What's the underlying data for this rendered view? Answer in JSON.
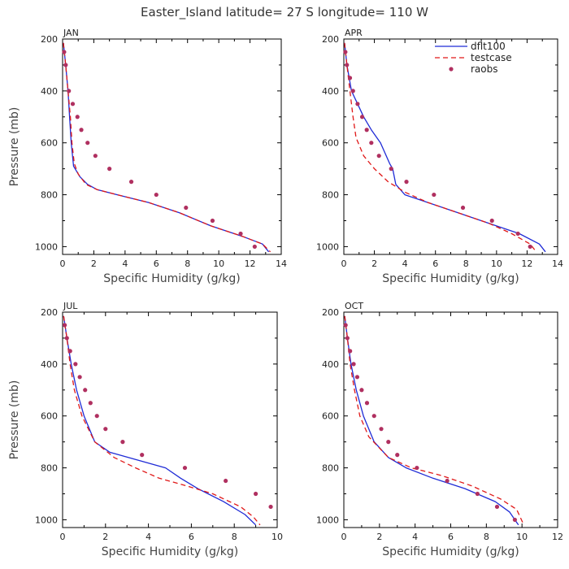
{
  "figure": {
    "title": "Easter_Island  latitude= 27 S longitude= 110 W",
    "colors": {
      "dflt100": "#1f2bd6",
      "testcase": "#e01818",
      "raobs": "#b03060",
      "axis": "#000000"
    }
  },
  "legend": {
    "entries": [
      {
        "name": "dflt100",
        "style": "solid-line"
      },
      {
        "name": "testcase",
        "style": "dashed-line"
      },
      {
        "name": "raobs",
        "style": "dot"
      }
    ]
  },
  "chart_data": [
    {
      "type": "line",
      "panel": "JAN",
      "xlabel": "Specific Humidity (g/kg)",
      "ylabel": "Pressure (mb)",
      "xlim": [
        0,
        14
      ],
      "ylim": [
        1030,
        200
      ],
      "xticks": [
        0,
        2,
        4,
        6,
        8,
        10,
        12,
        14
      ],
      "yticks": [
        200,
        400,
        600,
        800,
        1000
      ],
      "series": [
        {
          "name": "dflt100",
          "x": [
            0.05,
            0.2,
            0.35,
            0.45,
            0.55,
            0.7,
            1.1,
            1.6,
            2.2,
            3.5,
            5.5,
            7.5,
            9.5,
            11.5,
            12.8,
            13.2
          ],
          "y": [
            215,
            300,
            400,
            500,
            600,
            690,
            730,
            760,
            780,
            800,
            830,
            870,
            920,
            960,
            990,
            1020
          ]
        },
        {
          "name": "testcase",
          "x": [
            0.05,
            0.2,
            0.35,
            0.5,
            0.6,
            0.75,
            1.0,
            1.5,
            2.2,
            3.5,
            5.5,
            7.5,
            9.5,
            11.5,
            12.8,
            13.3
          ],
          "y": [
            215,
            300,
            400,
            500,
            600,
            680,
            720,
            760,
            780,
            800,
            830,
            870,
            920,
            960,
            990,
            1020
          ]
        },
        {
          "name": "raobs",
          "x": [
            0.1,
            0.2,
            0.4,
            0.65,
            0.95,
            1.2,
            1.6,
            2.1,
            3.0,
            4.4,
            6.0,
            7.9,
            9.6,
            11.4,
            12.3
          ],
          "y": [
            250,
            300,
            400,
            450,
            500,
            550,
            600,
            650,
            700,
            750,
            800,
            850,
            900,
            950,
            1000
          ]
        }
      ]
    },
    {
      "type": "line",
      "panel": "APR",
      "xlabel": "Specific Humidity (g/kg)",
      "ylabel": "",
      "xlim": [
        0,
        14
      ],
      "ylim": [
        1030,
        200
      ],
      "xticks": [
        0,
        2,
        4,
        6,
        8,
        10,
        12,
        14
      ],
      "yticks": [
        200,
        400,
        600,
        800,
        1000
      ],
      "series": [
        {
          "name": "dflt100",
          "x": [
            0.05,
            0.2,
            0.5,
            0.9,
            1.3,
            1.8,
            2.4,
            3.0,
            3.2,
            3.4,
            4.0,
            5.5,
            7.5,
            9.5,
            11.5,
            12.8,
            13.2
          ],
          "y": [
            215,
            300,
            400,
            450,
            500,
            550,
            600,
            680,
            700,
            760,
            800,
            830,
            870,
            910,
            950,
            990,
            1020
          ]
        },
        {
          "name": "testcase",
          "x": [
            0.05,
            0.2,
            0.4,
            0.6,
            0.8,
            1.3,
            2.0,
            2.9,
            4.0,
            5.5,
            7.5,
            9.5,
            11.0,
            12.2,
            12.6
          ],
          "y": [
            215,
            300,
            400,
            500,
            580,
            650,
            700,
            750,
            790,
            830,
            870,
            910,
            950,
            990,
            1020
          ]
        },
        {
          "name": "raobs",
          "x": [
            0.1,
            0.2,
            0.4,
            0.6,
            0.9,
            1.2,
            1.5,
            1.8,
            2.3,
            3.1,
            4.1,
            5.9,
            7.8,
            9.7,
            11.4,
            12.2
          ],
          "y": [
            250,
            300,
            350,
            400,
            450,
            500,
            550,
            600,
            650,
            700,
            750,
            800,
            850,
            900,
            950,
            1000
          ]
        }
      ]
    },
    {
      "type": "line",
      "panel": "JUL",
      "xlabel": "Specific Humidity (g/kg)",
      "ylabel": "Pressure (mb)",
      "xlim": [
        0,
        10
      ],
      "ylim": [
        1030,
        200
      ],
      "xticks": [
        0,
        2,
        4,
        6,
        8,
        10
      ],
      "yticks": [
        200,
        400,
        600,
        800,
        1000
      ],
      "series": [
        {
          "name": "dflt100",
          "x": [
            0.05,
            0.2,
            0.4,
            0.65,
            1.0,
            1.5,
            2.2,
            3.5,
            4.8,
            5.5,
            6.3,
            7.5,
            8.5,
            9.0
          ],
          "y": [
            215,
            300,
            400,
            500,
            600,
            700,
            740,
            770,
            800,
            840,
            880,
            930,
            980,
            1020
          ]
        },
        {
          "name": "testcase",
          "x": [
            0.05,
            0.2,
            0.35,
            0.55,
            0.9,
            1.5,
            2.4,
            3.4,
            4.5,
            5.8,
            7.0,
            8.3,
            8.9,
            9.2
          ],
          "y": [
            215,
            300,
            400,
            500,
            600,
            700,
            760,
            800,
            840,
            870,
            900,
            950,
            990,
            1020
          ]
        },
        {
          "name": "raobs",
          "x": [
            0.1,
            0.2,
            0.35,
            0.6,
            0.8,
            1.05,
            1.3,
            1.6,
            2.0,
            2.8,
            3.7,
            5.7,
            7.6,
            9.0,
            9.7
          ],
          "y": [
            250,
            300,
            350,
            400,
            450,
            500,
            550,
            600,
            650,
            700,
            750,
            800,
            850,
            900,
            950
          ]
        }
      ]
    },
    {
      "type": "line",
      "panel": "OCT",
      "xlabel": "Specific Humidity (g/kg)",
      "ylabel": "",
      "xlim": [
        0,
        12
      ],
      "ylim": [
        1030,
        200
      ],
      "xticks": [
        0,
        2,
        4,
        6,
        8,
        10,
        12
      ],
      "yticks": [
        200,
        400,
        600,
        800,
        1000
      ],
      "series": [
        {
          "name": "dflt100",
          "x": [
            0.05,
            0.2,
            0.4,
            0.7,
            1.1,
            1.7,
            2.5,
            3.5,
            5.0,
            6.8,
            8.5,
            9.3,
            9.8
          ],
          "y": [
            215,
            300,
            400,
            500,
            600,
            700,
            760,
            800,
            840,
            880,
            930,
            970,
            1020
          ]
        },
        {
          "name": "testcase",
          "x": [
            0.05,
            0.2,
            0.35,
            0.6,
            0.9,
            1.4,
            2.5,
            3.8,
            5.5,
            7.2,
            8.8,
            9.7,
            10.1
          ],
          "y": [
            215,
            300,
            400,
            500,
            600,
            680,
            760,
            800,
            830,
            870,
            920,
            960,
            1020
          ]
        },
        {
          "name": "raobs",
          "x": [
            0.1,
            0.2,
            0.35,
            0.55,
            0.75,
            1.0,
            1.3,
            1.7,
            2.1,
            2.5,
            3.0,
            4.1,
            5.8,
            7.5,
            8.6,
            9.6
          ],
          "y": [
            250,
            300,
            350,
            400,
            450,
            500,
            550,
            600,
            650,
            700,
            750,
            800,
            850,
            900,
            950,
            1000
          ]
        }
      ]
    }
  ]
}
